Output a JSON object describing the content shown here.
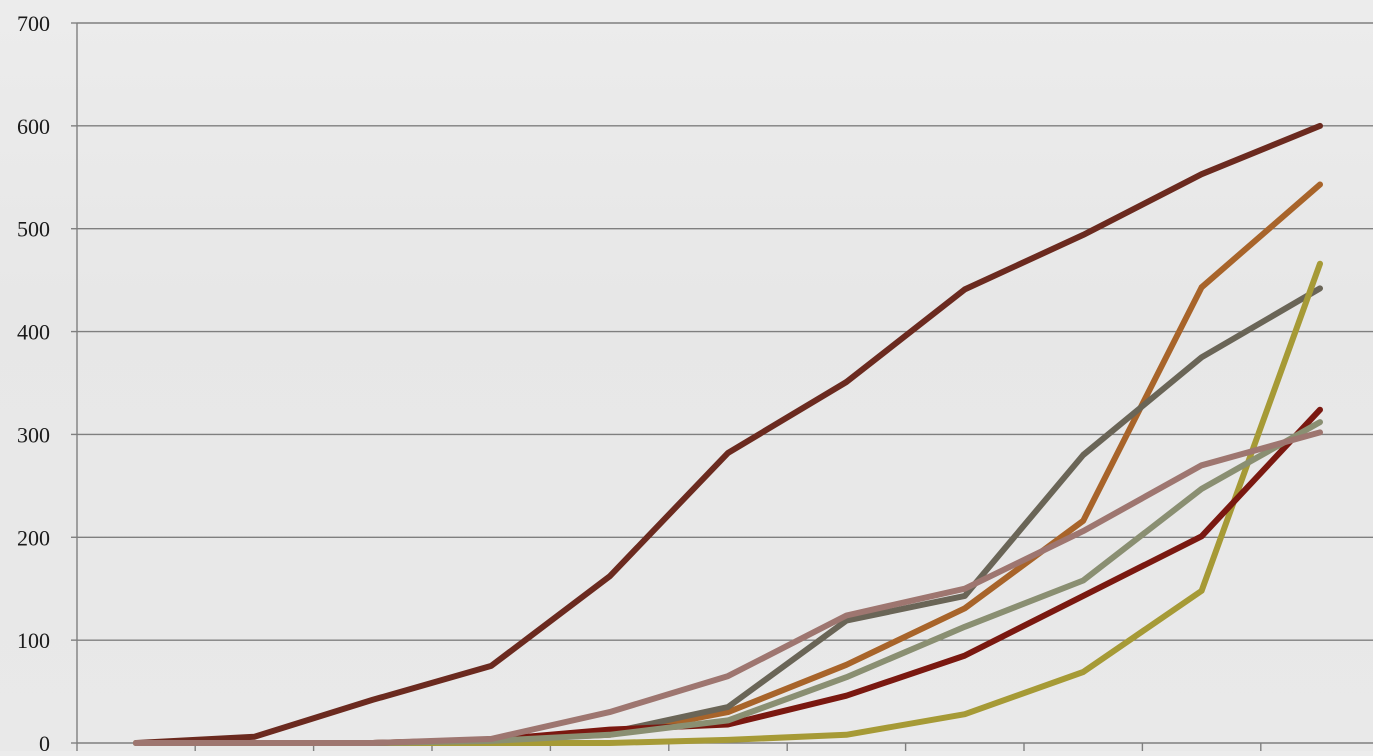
{
  "chart_data": {
    "type": "line",
    "title": "",
    "xlabel": "",
    "ylabel": "",
    "ylim": [
      0,
      700
    ],
    "y_ticks": [
      "0",
      "100",
      "200",
      "300",
      "400",
      "500",
      "600",
      "700"
    ],
    "grid": "horizontal",
    "legend": "none",
    "x": [
      1,
      2,
      3,
      4,
      5,
      6,
      7,
      8,
      9,
      10,
      11
    ],
    "series": [
      {
        "color": "#6b2a1f",
        "values": [
          0,
          6,
          42,
          75,
          162,
          282,
          351,
          441,
          494,
          553,
          600
        ]
      },
      {
        "color": "#a8642a",
        "values": [
          0,
          0,
          0,
          3,
          8,
          30,
          76,
          131,
          216,
          443,
          543
        ]
      },
      {
        "color": "#6a6557",
        "values": [
          0,
          0,
          0,
          2,
          10,
          35,
          119,
          143,
          280,
          375,
          442
        ]
      },
      {
        "color": "#a69a36",
        "values": [
          0,
          0,
          0,
          0,
          0,
          3,
          8,
          28,
          69,
          148,
          466
        ]
      },
      {
        "color": "#7a1810",
        "values": [
          0,
          0,
          0,
          3,
          13,
          18,
          46,
          85,
          143,
          201,
          324
        ]
      },
      {
        "color": "#8a8f72",
        "values": [
          0,
          0,
          0,
          2,
          8,
          22,
          64,
          113,
          158,
          247,
          312
        ]
      },
      {
        "color": "#9e7670",
        "values": [
          0,
          0,
          0,
          4,
          30,
          65,
          124,
          150,
          206,
          270,
          302
        ]
      }
    ]
  }
}
